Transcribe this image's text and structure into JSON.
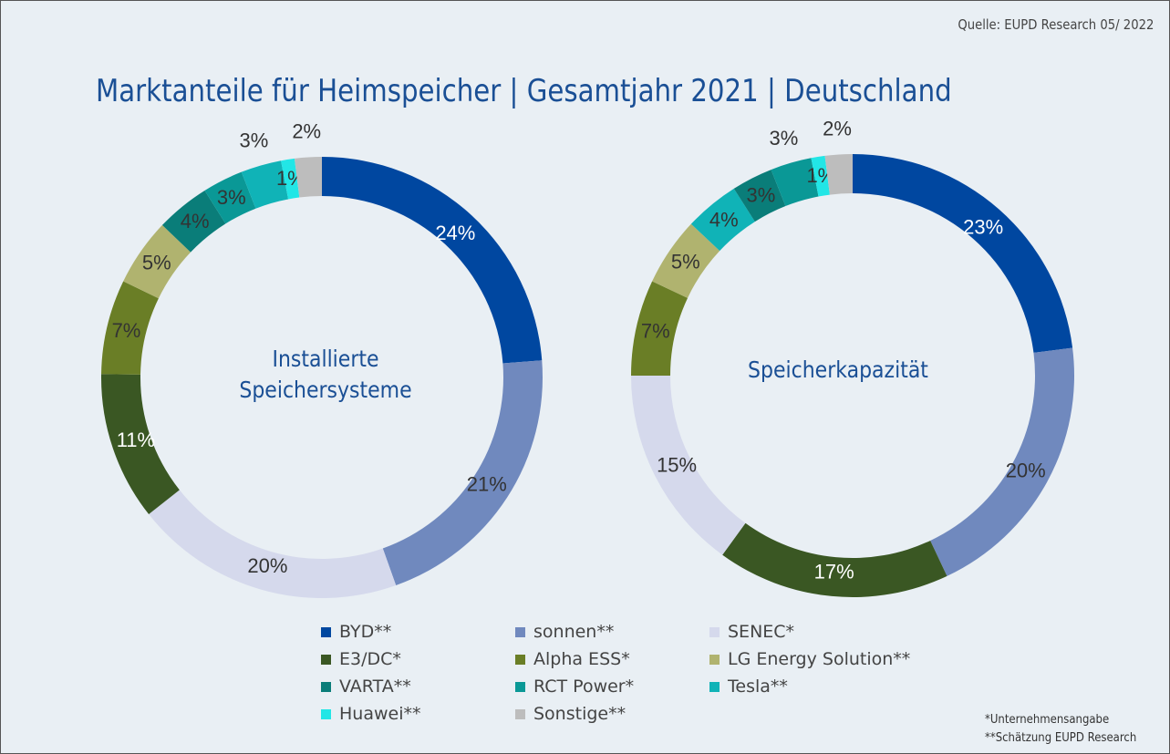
{
  "source": "Quelle: EUPD Research 05/ 2022",
  "title": "Marktanteile für Heimspeicher | Gesamtjahr 2021 | Deutschland",
  "colors": {
    "BYD**": "#0047a0",
    "sonnen**": "#7089be",
    "SENEC*": "#d5d9ec",
    "E3/DC*": "#3a5723",
    "Alpha ESS*": "#6a7e26",
    "LG Energy Solution**": "#b0b36f",
    "VARTA**": "#0a7d79",
    "RCT Power*": "#0a9896",
    "Tesla**": "#10b3b7",
    "Huawei**": "#22e6e6",
    "Sonstige**": "#bdbdbd"
  },
  "chart_data": [
    {
      "type": "pie",
      "donut": true,
      "center_label": [
        "Installierte",
        "Speichersysteme"
      ],
      "categories": [
        "BYD**",
        "sonnen**",
        "SENEC*",
        "E3/DC*",
        "Alpha ESS*",
        "LG Energy Solution**",
        "VARTA**",
        "RCT Power*",
        "Tesla**",
        "Huawei**",
        "Sonstige**"
      ],
      "values": [
        24,
        21,
        20,
        11,
        7,
        5,
        4,
        3,
        3,
        1,
        2
      ],
      "unit": "%"
    },
    {
      "type": "pie",
      "donut": true,
      "center_label": [
        "Speicherkapazität"
      ],
      "categories": [
        "BYD**",
        "sonnen**",
        "E3/DC*",
        "SENEC*",
        "Alpha ESS*",
        "LG Energy Solution**",
        "Tesla**",
        "VARTA**",
        "RCT Power*",
        "Huawei**",
        "Sonstige**"
      ],
      "values": [
        23,
        20,
        17,
        15,
        7,
        5,
        4,
        3,
        3,
        1,
        2
      ],
      "unit": "%"
    }
  ],
  "legend": [
    "BYD**",
    "sonnen**",
    "SENEC*",
    "E3/DC*",
    "Alpha ESS*",
    "LG Energy Solution**",
    "VARTA**",
    "RCT Power*",
    "Tesla**",
    "Huawei**",
    "Sonstige**"
  ],
  "footnotes": [
    "*Unternehmensangabe",
    "**Schätzung EUPD Research"
  ]
}
